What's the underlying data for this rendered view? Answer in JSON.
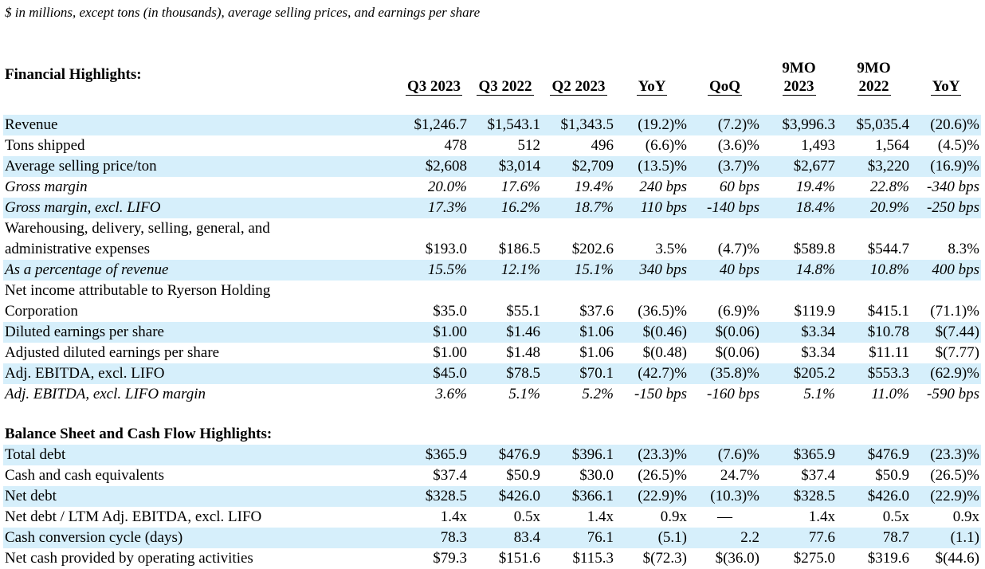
{
  "note": "$ in millions, except tons (in thousands), average selling prices, and earnings per share",
  "header": {
    "title": "Financial Highlights:",
    "columns": [
      "Q3 2023",
      "Q3 2022",
      "Q2 2023",
      "YoY",
      "QoQ",
      "9MO 2023",
      "9MO 2022",
      "YoY"
    ],
    "columns_line1": [
      "",
      "",
      "",
      "",
      "",
      "9MO",
      "9MO",
      ""
    ],
    "columns_line2": [
      "Q3 2023",
      "Q3 2022",
      "Q2 2023",
      "YoY",
      "QoQ",
      "2023",
      "2022",
      "YoY"
    ]
  },
  "rows": [
    {
      "label": "Revenue",
      "values": [
        "$1,246.7",
        "$1,543.1",
        "$1,343.5",
        "(19.2)%",
        "(7.2)%",
        "$3,996.3",
        "$5,035.4",
        "(20.6)%"
      ],
      "shade": true,
      "italic": false
    },
    {
      "label": "Tons shipped",
      "values": [
        "478",
        "512",
        "496",
        "(6.6)%",
        "(3.6)%",
        "1,493",
        "1,564",
        "(4.5)%"
      ],
      "shade": false,
      "italic": false
    },
    {
      "label": "Average selling price/ton",
      "values": [
        "$2,608",
        "$3,014",
        "$2,709",
        "(13.5)%",
        "(3.7)%",
        "$2,677",
        "$3,220",
        "(16.9)%"
      ],
      "shade": true,
      "italic": false
    },
    {
      "label": "Gross margin",
      "values": [
        "20.0%",
        "17.6%",
        "19.4%",
        "240 bps",
        "60 bps",
        "19.4%",
        "22.8%",
        "-340 bps"
      ],
      "shade": false,
      "italic": true
    },
    {
      "label": "Gross margin, excl. LIFO",
      "values": [
        "17.3%",
        "16.2%",
        "18.7%",
        "110 bps",
        "-140 bps",
        "18.4%",
        "20.9%",
        "-250 bps"
      ],
      "shade": true,
      "italic": true
    },
    {
      "label": "Warehousing, delivery, selling, general, and administrative expenses",
      "label_line1": "Warehousing, delivery, selling, general, and",
      "label_line2": "administrative expenses",
      "values": [
        "$193.0",
        "$186.5",
        "$202.6",
        "3.5%",
        "(4.7)%",
        "$589.8",
        "$544.7",
        "8.3%"
      ],
      "shade": false,
      "italic": false,
      "tall": true
    },
    {
      "label": "As a percentage of revenue",
      "values": [
        "15.5%",
        "12.1%",
        "15.1%",
        "340 bps",
        "40 bps",
        "14.8%",
        "10.8%",
        "400 bps"
      ],
      "shade": true,
      "italic": true
    },
    {
      "label": "Net income attributable to Ryerson Holding Corporation",
      "label_line1": "Net income attributable to Ryerson Holding",
      "label_line2": "Corporation",
      "values": [
        "$35.0",
        "$55.1",
        "$37.6",
        "(36.5)%",
        "(6.9)%",
        "$119.9",
        "$415.1",
        "(71.1)%"
      ],
      "shade": false,
      "italic": false,
      "tall": true
    },
    {
      "label": "Diluted earnings per share",
      "values": [
        "$1.00",
        "$1.46",
        "$1.06",
        "$(0.46)",
        "$(0.06)",
        "$3.34",
        "$10.78",
        "$(7.44)"
      ],
      "shade": true,
      "italic": false
    },
    {
      "label": "Adjusted diluted earnings per share",
      "values": [
        "$1.00",
        "$1.48",
        "$1.06",
        "$(0.48)",
        "$(0.06)",
        "$3.34",
        "$11.11",
        "$(7.77)"
      ],
      "shade": false,
      "italic": false
    },
    {
      "label": "Adj. EBITDA, excl. LIFO",
      "values": [
        "$45.0",
        "$78.5",
        "$70.1",
        "(42.7)%",
        "(35.8)%",
        "$205.2",
        "$553.3",
        "(62.9)%"
      ],
      "shade": true,
      "italic": false
    },
    {
      "label": "Adj. EBITDA, excl. LIFO margin",
      "values": [
        "3.6%",
        "5.1%",
        "5.2%",
        "-150 bps",
        "-160 bps",
        "5.1%",
        "11.0%",
        "-590 bps"
      ],
      "shade": false,
      "italic": true
    }
  ],
  "balance_title": "Balance Sheet and Cash Flow Highlights:",
  "balance_rows": [
    {
      "label": "Total debt",
      "values": [
        "$365.9",
        "$476.9",
        "$396.1",
        "(23.3)%",
        "(7.6)%",
        "$365.9",
        "$476.9",
        "(23.3)%"
      ],
      "shade": true
    },
    {
      "label": "Cash and cash equivalents",
      "values": [
        "$37.4",
        "$50.9",
        "$30.0",
        "(26.5)%",
        "24.7%",
        "$37.4",
        "$50.9",
        "(26.5)%"
      ],
      "shade": false
    },
    {
      "label": "Net debt",
      "values": [
        "$328.5",
        "$426.0",
        "$366.1",
        "(22.9)%",
        "(10.3)%",
        "$328.5",
        "$426.0",
        "(22.9)%"
      ],
      "shade": true
    },
    {
      "label": "Net debt / LTM Adj. EBITDA, excl. LIFO",
      "values": [
        "1.4x",
        "0.5x",
        "1.4x",
        "0.9x",
        "—",
        "1.4x",
        "0.5x",
        "0.9x"
      ],
      "shade": false
    },
    {
      "label": "Cash conversion cycle (days)",
      "values": [
        "78.3",
        "83.4",
        "76.1",
        "(5.1)",
        "2.2",
        "77.6",
        "78.7",
        "(1.1)"
      ],
      "shade": true
    },
    {
      "label": "Net cash provided by operating activities",
      "values": [
        "$79.3",
        "$151.6",
        "$115.3",
        "$(72.3)",
        "$(36.0)",
        "$275.0",
        "$319.6",
        "$(44.6)"
      ],
      "shade": false
    }
  ]
}
